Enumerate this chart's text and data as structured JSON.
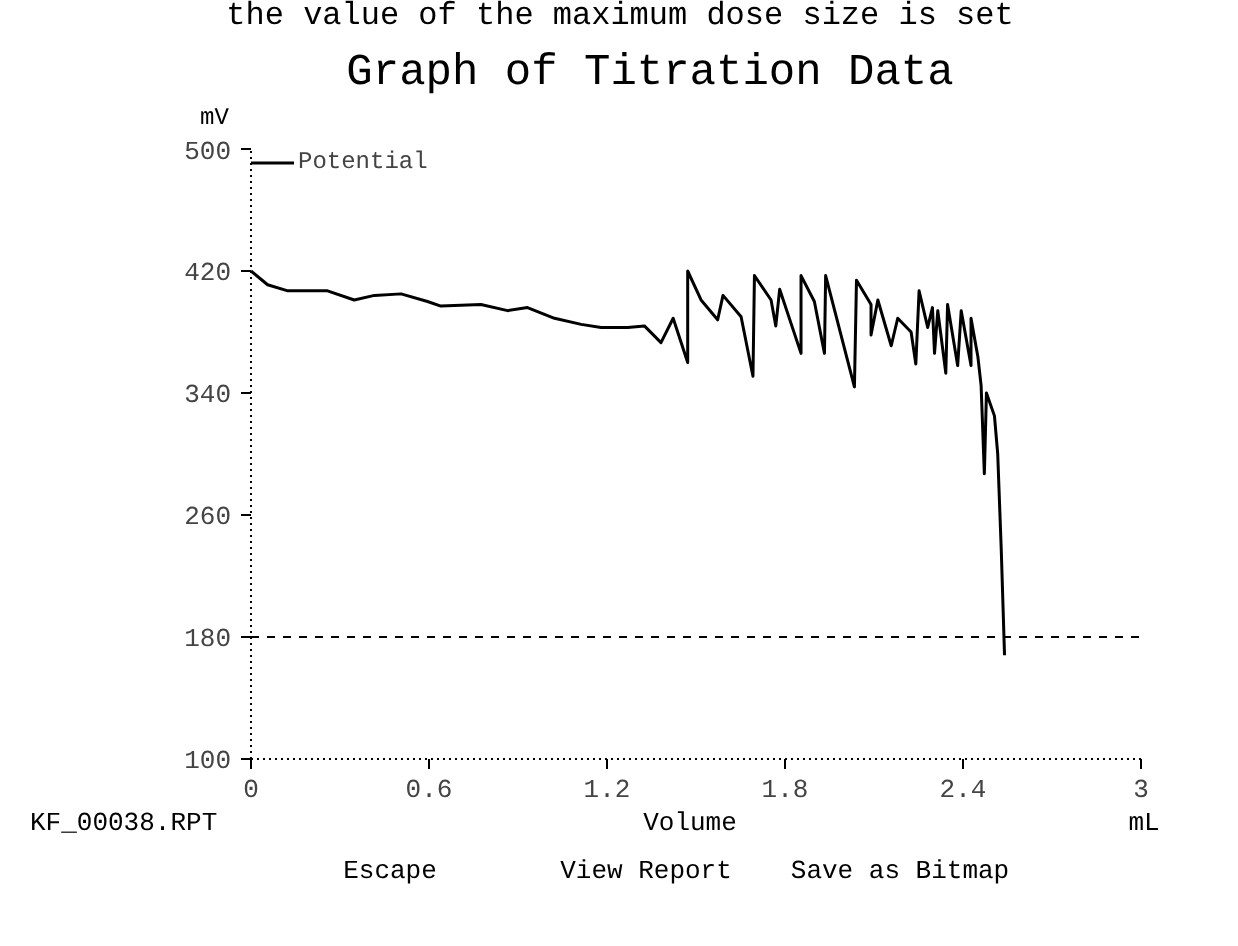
{
  "chart_data": {
    "type": "line",
    "title": "Graph of Titration Data",
    "xlabel": "Volume",
    "ylabel": "mV",
    "series": [
      {
        "name": "Potential",
        "color": "#000000",
        "x": [
          0,
          0.056,
          0.124,
          0.258,
          0.348,
          0.416,
          0.506,
          0.595,
          0.64,
          0.775,
          0.865,
          0.932,
          1.023,
          1.113,
          1.18,
          1.27,
          1.326,
          1.382,
          1.423,
          1.472,
          1.472,
          1.517,
          1.573,
          1.591,
          1.652,
          1.692,
          1.697,
          1.753,
          1.769,
          1.782,
          1.854,
          1.854,
          1.899,
          1.933,
          1.937,
          2.034,
          2.041,
          2.09,
          2.09,
          2.113,
          2.158,
          2.18,
          2.225,
          2.241,
          2.252,
          2.281,
          2.297,
          2.304,
          2.315,
          2.342,
          2.348,
          2.382,
          2.394,
          2.427,
          2.427,
          2.45,
          2.461,
          2.472,
          2.479,
          2.506,
          2.517,
          2.529,
          2.54
        ],
        "values": [
          420,
          411,
          407,
          407,
          401,
          404,
          405,
          400,
          397,
          398,
          394,
          396,
          389,
          385,
          383,
          383,
          384,
          373,
          389,
          360,
          420,
          401,
          388,
          404,
          390,
          351,
          417,
          401,
          384,
          408,
          366,
          417,
          400,
          366,
          417,
          344,
          414,
          398,
          378,
          401,
          371,
          389,
          380,
          359,
          407,
          383,
          396,
          366,
          394,
          353,
          398,
          358,
          394,
          358,
          389,
          364,
          345,
          287,
          340,
          325,
          300,
          237,
          168
        ]
      }
    ],
    "xlim": [
      0,
      3
    ],
    "ylim": [
      100,
      500
    ],
    "xticks": [
      0,
      0.6,
      1.2,
      1.8,
      2.4,
      3
    ],
    "yticks": [
      100,
      180,
      260,
      340,
      420,
      500
    ],
    "ref_lines": [
      {
        "axis": "y",
        "value": 180,
        "line_style": "dashed"
      }
    ],
    "grid": false,
    "legend": "top left",
    "line_style": "solid",
    "marker": "none",
    "annotations": [
      "the value of the maximum dose size is set",
      "KF_00038.RPT",
      "mL",
      "Escape",
      "View Report",
      "Save as Bitmap"
    ]
  }
}
